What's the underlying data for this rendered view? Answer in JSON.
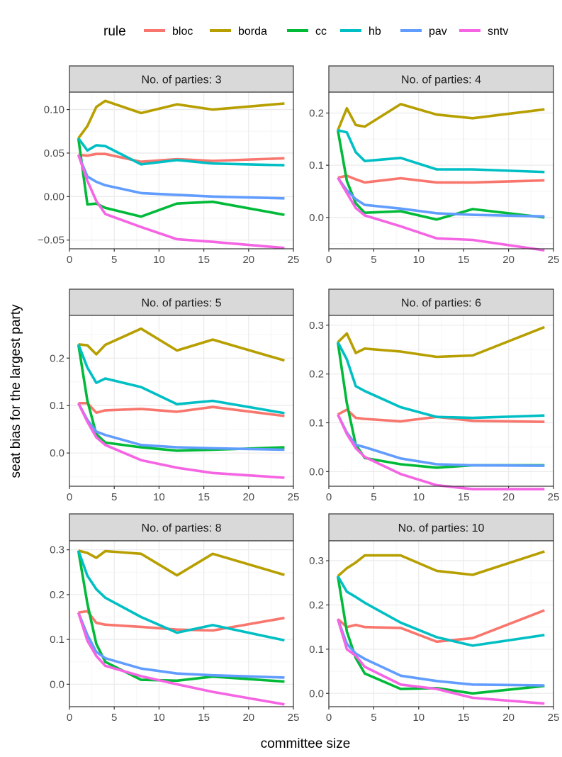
{
  "legend": {
    "title": "rule",
    "entries": [
      {
        "name": "bloc",
        "color": "#F8766D"
      },
      {
        "name": "borda",
        "color": "#B79F00"
      },
      {
        "name": "cc",
        "color": "#00BA38"
      },
      {
        "name": "hb",
        "color": "#00BFC4"
      },
      {
        "name": "pav",
        "color": "#619CFF"
      },
      {
        "name": "sntv",
        "color": "#F564E3"
      }
    ]
  },
  "axes": {
    "xlabel": "committee size",
    "ylabel": "seat bias for the largest party",
    "xlim": [
      0,
      25
    ],
    "xticks": [
      0,
      5,
      10,
      15,
      20,
      25
    ]
  },
  "colors": {
    "strip_bg": "#D9D9D9",
    "panel_border": "#333333",
    "grid_major": "#EBEBEB",
    "grid_minor": "#F5F5F5"
  },
  "chart_data": [
    {
      "type": "line",
      "title": "No. of parties: 3",
      "ylim": [
        -0.06,
        0.12
      ],
      "yticks": [
        -0.05,
        0.0,
        0.05,
        0.1
      ],
      "ytick_labels": [
        "−0.05",
        "0.00",
        "0.05",
        "0.10"
      ],
      "x": [
        1,
        2,
        3,
        4,
        8,
        12,
        16,
        24
      ],
      "series": [
        {
          "name": "bloc",
          "values": [
            0.048,
            0.047,
            0.049,
            0.049,
            0.04,
            0.043,
            0.041,
            0.044
          ]
        },
        {
          "name": "borda",
          "values": [
            0.067,
            0.081,
            0.103,
            0.11,
            0.096,
            0.106,
            0.1,
            0.107
          ]
        },
        {
          "name": "cc",
          "values": [
            0.067,
            -0.009,
            -0.008,
            -0.013,
            -0.023,
            -0.008,
            -0.006,
            -0.021
          ]
        },
        {
          "name": "hb",
          "values": [
            0.067,
            0.053,
            0.059,
            0.058,
            0.037,
            0.042,
            0.038,
            0.036
          ]
        },
        {
          "name": "pav",
          "values": [
            0.048,
            0.023,
            0.017,
            0.013,
            0.004,
            0.002,
            0.0,
            -0.002
          ]
        },
        {
          "name": "sntv",
          "values": [
            0.048,
            0.018,
            -0.005,
            -0.02,
            -0.035,
            -0.049,
            -0.052,
            -0.059
          ]
        }
      ]
    },
    {
      "type": "line",
      "title": "No. of parties: 4",
      "ylim": [
        -0.06,
        0.24
      ],
      "yticks": [
        0.0,
        0.1,
        0.2
      ],
      "ytick_labels": [
        "0.0",
        "0.1",
        "0.2"
      ],
      "x": [
        1,
        2,
        3,
        4,
        8,
        12,
        16,
        24
      ],
      "series": [
        {
          "name": "bloc",
          "values": [
            0.076,
            0.08,
            0.073,
            0.067,
            0.075,
            0.067,
            0.067,
            0.071
          ]
        },
        {
          "name": "borda",
          "values": [
            0.167,
            0.209,
            0.177,
            0.174,
            0.217,
            0.197,
            0.19,
            0.207
          ]
        },
        {
          "name": "cc",
          "values": [
            0.167,
            0.07,
            0.027,
            0.009,
            0.012,
            -0.004,
            0.016,
            0.0
          ]
        },
        {
          "name": "hb",
          "values": [
            0.167,
            0.163,
            0.125,
            0.108,
            0.114,
            0.092,
            0.092,
            0.087
          ]
        },
        {
          "name": "pav",
          "values": [
            0.076,
            0.052,
            0.035,
            0.024,
            0.017,
            0.008,
            0.005,
            0.002
          ]
        },
        {
          "name": "sntv",
          "values": [
            0.076,
            0.047,
            0.018,
            0.004,
            -0.017,
            -0.04,
            -0.043,
            -0.063
          ]
        }
      ]
    },
    {
      "type": "line",
      "title": "No. of parties: 5",
      "ylim": [
        -0.07,
        0.29
      ],
      "yticks": [
        0.0,
        0.1,
        0.2
      ],
      "ytick_labels": [
        "0.0",
        "0.1",
        "0.2"
      ],
      "x": [
        1,
        2,
        3,
        4,
        8,
        12,
        16,
        24
      ],
      "series": [
        {
          "name": "bloc",
          "values": [
            0.105,
            0.105,
            0.085,
            0.09,
            0.093,
            0.087,
            0.097,
            0.078
          ]
        },
        {
          "name": "borda",
          "values": [
            0.229,
            0.227,
            0.208,
            0.228,
            0.262,
            0.216,
            0.239,
            0.195
          ]
        },
        {
          "name": "cc",
          "values": [
            0.229,
            0.11,
            0.04,
            0.022,
            0.012,
            0.005,
            0.007,
            0.012
          ]
        },
        {
          "name": "hb",
          "values": [
            0.229,
            0.18,
            0.148,
            0.157,
            0.139,
            0.103,
            0.11,
            0.084
          ]
        },
        {
          "name": "pav",
          "values": [
            0.105,
            0.07,
            0.045,
            0.038,
            0.017,
            0.012,
            0.01,
            0.007
          ]
        },
        {
          "name": "sntv",
          "values": [
            0.105,
            0.066,
            0.033,
            0.017,
            -0.015,
            -0.031,
            -0.042,
            -0.052
          ]
        }
      ]
    },
    {
      "type": "line",
      "title": "No. of parties: 6",
      "ylim": [
        -0.03,
        0.32
      ],
      "yticks": [
        0.0,
        0.1,
        0.2,
        0.3
      ],
      "ytick_labels": [
        "0.0",
        "0.1",
        "0.2",
        "0.3"
      ],
      "x": [
        1,
        2,
        3,
        4,
        8,
        12,
        16,
        24
      ],
      "series": [
        {
          "name": "bloc",
          "values": [
            0.117,
            0.127,
            0.11,
            0.108,
            0.103,
            0.112,
            0.104,
            0.102
          ]
        },
        {
          "name": "borda",
          "values": [
            0.265,
            0.283,
            0.243,
            0.252,
            0.246,
            0.235,
            0.238,
            0.296
          ]
        },
        {
          "name": "cc",
          "values": [
            0.265,
            0.14,
            0.055,
            0.028,
            0.015,
            0.008,
            0.013,
            0.013
          ]
        },
        {
          "name": "hb",
          "values": [
            0.265,
            0.23,
            0.175,
            0.165,
            0.132,
            0.112,
            0.11,
            0.115
          ]
        },
        {
          "name": "pav",
          "values": [
            0.117,
            0.08,
            0.055,
            0.05,
            0.027,
            0.015,
            0.013,
            0.012
          ]
        },
        {
          "name": "sntv",
          "values": [
            0.117,
            0.077,
            0.048,
            0.03,
            -0.005,
            -0.028,
            -0.036,
            -0.036
          ]
        }
      ]
    },
    {
      "type": "line",
      "title": "No. of parties: 8",
      "ylim": [
        -0.05,
        0.32
      ],
      "yticks": [
        0.0,
        0.1,
        0.2,
        0.3
      ],
      "ytick_labels": [
        "0.0",
        "0.1",
        "0.2",
        "0.3"
      ],
      "x": [
        1,
        2,
        3,
        4,
        8,
        12,
        16,
        24
      ],
      "series": [
        {
          "name": "bloc",
          "values": [
            0.16,
            0.163,
            0.137,
            0.133,
            0.128,
            0.122,
            0.12,
            0.148
          ]
        },
        {
          "name": "borda",
          "values": [
            0.298,
            0.293,
            0.282,
            0.297,
            0.291,
            0.243,
            0.291,
            0.244
          ]
        },
        {
          "name": "cc",
          "values": [
            0.298,
            0.18,
            0.09,
            0.05,
            0.01,
            0.008,
            0.017,
            0.006
          ]
        },
        {
          "name": "hb",
          "values": [
            0.298,
            0.242,
            0.212,
            0.193,
            0.15,
            0.115,
            0.132,
            0.098
          ]
        },
        {
          "name": "pav",
          "values": [
            0.16,
            0.11,
            0.072,
            0.058,
            0.035,
            0.024,
            0.02,
            0.015
          ]
        },
        {
          "name": "sntv",
          "values": [
            0.16,
            0.097,
            0.063,
            0.041,
            0.018,
            0.0,
            -0.017,
            -0.045
          ]
        }
      ]
    },
    {
      "type": "line",
      "title": "No. of parties: 10",
      "ylim": [
        -0.03,
        0.345
      ],
      "yticks": [
        0.0,
        0.1,
        0.2,
        0.3
      ],
      "ytick_labels": [
        "0.0",
        "0.1",
        "0.2",
        "0.3"
      ],
      "x": [
        1,
        2,
        3,
        4,
        8,
        12,
        16,
        24
      ],
      "series": [
        {
          "name": "bloc",
          "values": [
            0.168,
            0.15,
            0.155,
            0.15,
            0.148,
            0.117,
            0.125,
            0.188
          ]
        },
        {
          "name": "borda",
          "values": [
            0.265,
            0.283,
            0.296,
            0.312,
            0.312,
            0.277,
            0.268,
            0.321
          ]
        },
        {
          "name": "cc",
          "values": [
            0.265,
            0.14,
            0.08,
            0.045,
            0.01,
            0.012,
            0.0,
            0.017
          ]
        },
        {
          "name": "hb",
          "values": [
            0.265,
            0.23,
            0.218,
            0.205,
            0.16,
            0.127,
            0.108,
            0.132
          ]
        },
        {
          "name": "pav",
          "values": [
            0.168,
            0.112,
            0.09,
            0.078,
            0.04,
            0.028,
            0.02,
            0.018
          ]
        },
        {
          "name": "sntv",
          "values": [
            0.168,
            0.1,
            0.085,
            0.06,
            0.02,
            0.01,
            -0.01,
            -0.023
          ]
        }
      ]
    }
  ]
}
